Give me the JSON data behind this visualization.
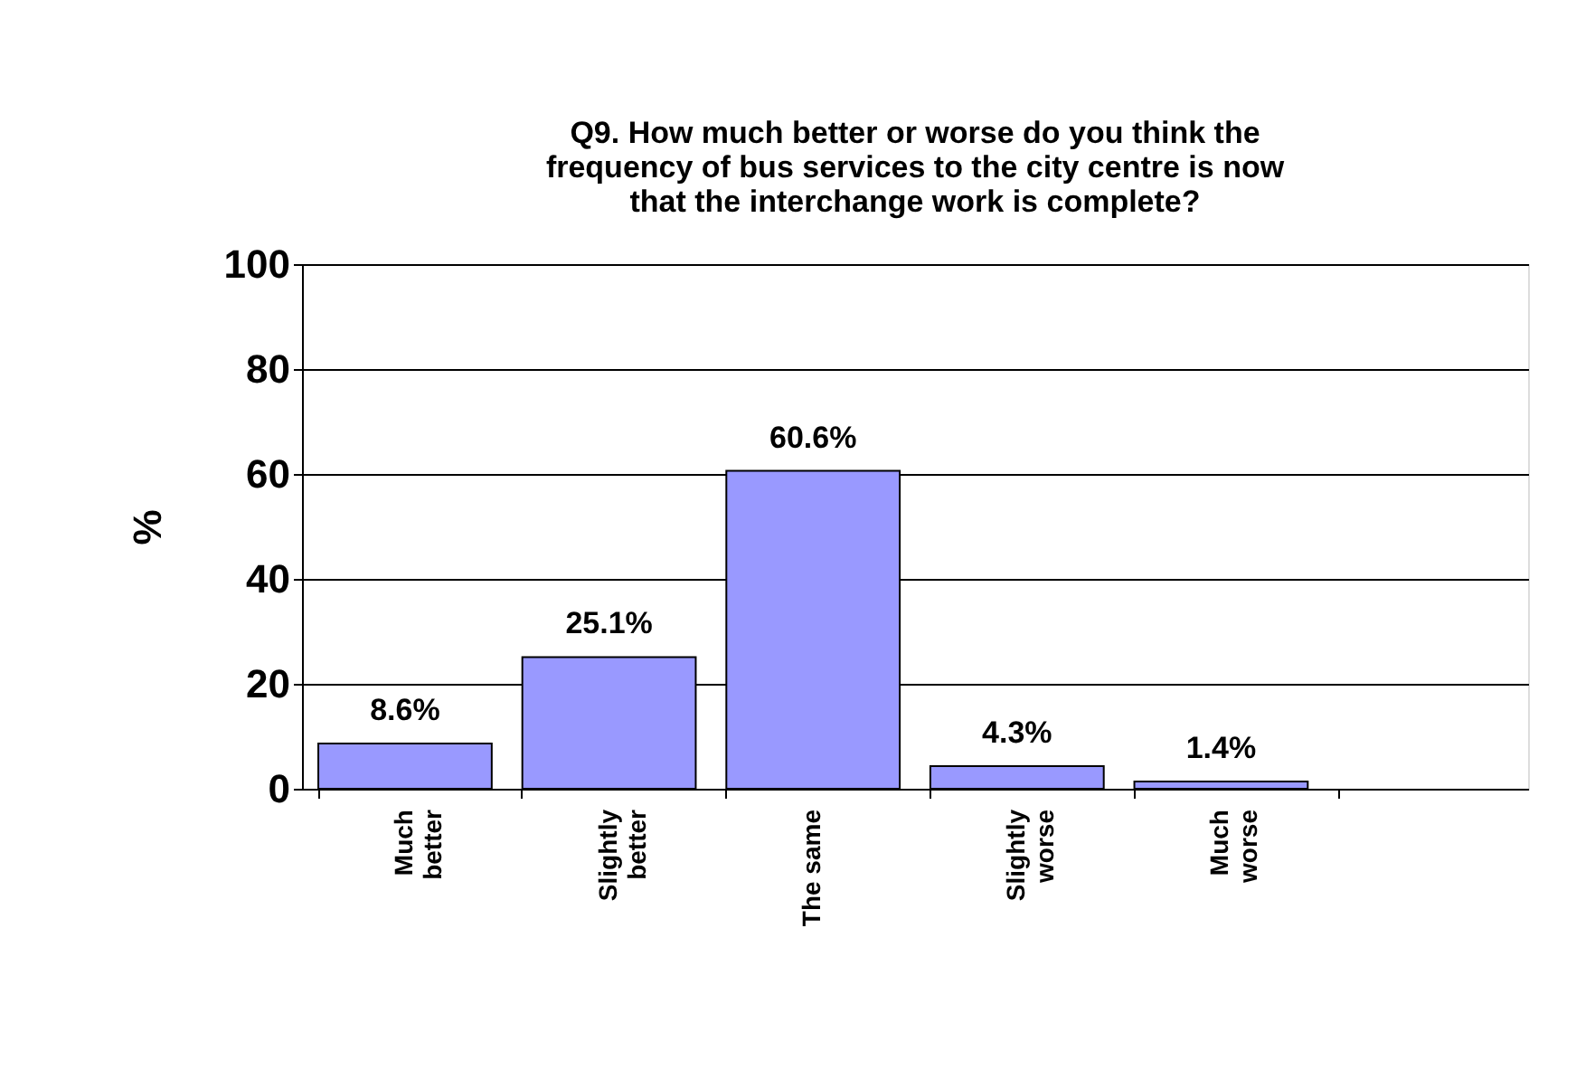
{
  "chart_data": {
    "type": "bar",
    "title": "Q9. How much better or worse do you think the\nfrequency of bus services to the city centre is now\nthat the interchange work is complete?",
    "ylabel": "%",
    "categories": [
      "Much\nbetter",
      "Slightly\nbetter",
      "The same",
      "Slightly\nworse",
      "Much\nworse",
      null
    ],
    "values": [
      8.6,
      25.1,
      60.6,
      4.3,
      1.4,
      null
    ],
    "value_labels": [
      "8.6%",
      "25.1%",
      "60.6%",
      "4.3%",
      "1.4%",
      null
    ],
    "color": "#9999ff",
    "ylim": [
      0,
      100
    ],
    "yticks": [
      0,
      20,
      40,
      60,
      80,
      100
    ],
    "grid": "y"
  }
}
